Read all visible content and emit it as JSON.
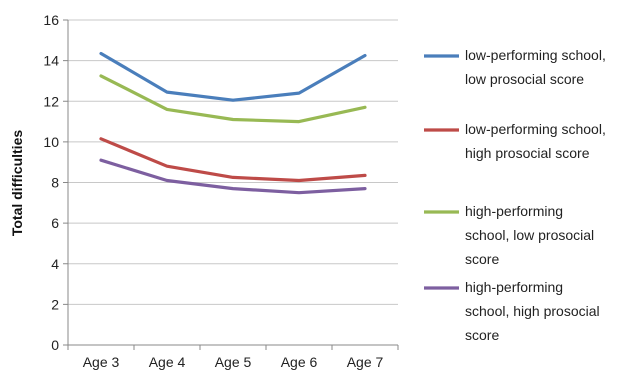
{
  "chart_data": {
    "type": "line",
    "title": "",
    "xlabel": "",
    "ylabel": "Total difficulties",
    "ylim": [
      0,
      16
    ],
    "yticks": [
      0,
      2,
      4,
      6,
      8,
      10,
      12,
      14,
      16
    ],
    "grid": "horizontal",
    "legend_position": "right",
    "categories": [
      "Age 3",
      "Age 4",
      "Age 5",
      "Age 6",
      "Age 7"
    ],
    "series": [
      {
        "name": "low-performing school, low prosocial score",
        "legend_lines": [
          "low-performing school,",
          "low prosocial score"
        ],
        "color": "#4a7ebb",
        "values": [
          14.35,
          12.45,
          12.05,
          12.4,
          14.25
        ]
      },
      {
        "name": "low-performing school, high prosocial score",
        "legend_lines": [
          "low-performing school,",
          "high prosocial score"
        ],
        "color": "#be4b48",
        "values": [
          10.15,
          8.8,
          8.25,
          8.1,
          8.35
        ]
      },
      {
        "name": "high-performing school, low prosocial score",
        "legend_lines": [
          "high-performing",
          "school, low prosocial",
          "score"
        ],
        "color": "#98b954",
        "values": [
          13.25,
          11.6,
          11.1,
          11.0,
          11.7
        ]
      },
      {
        "name": "high-performing school, high prosocial score",
        "legend_lines": [
          "high-performing",
          "school, high prosocial",
          "score"
        ],
        "color": "#7d5fa0",
        "values": [
          9.1,
          8.1,
          7.7,
          7.5,
          7.7
        ]
      }
    ]
  }
}
